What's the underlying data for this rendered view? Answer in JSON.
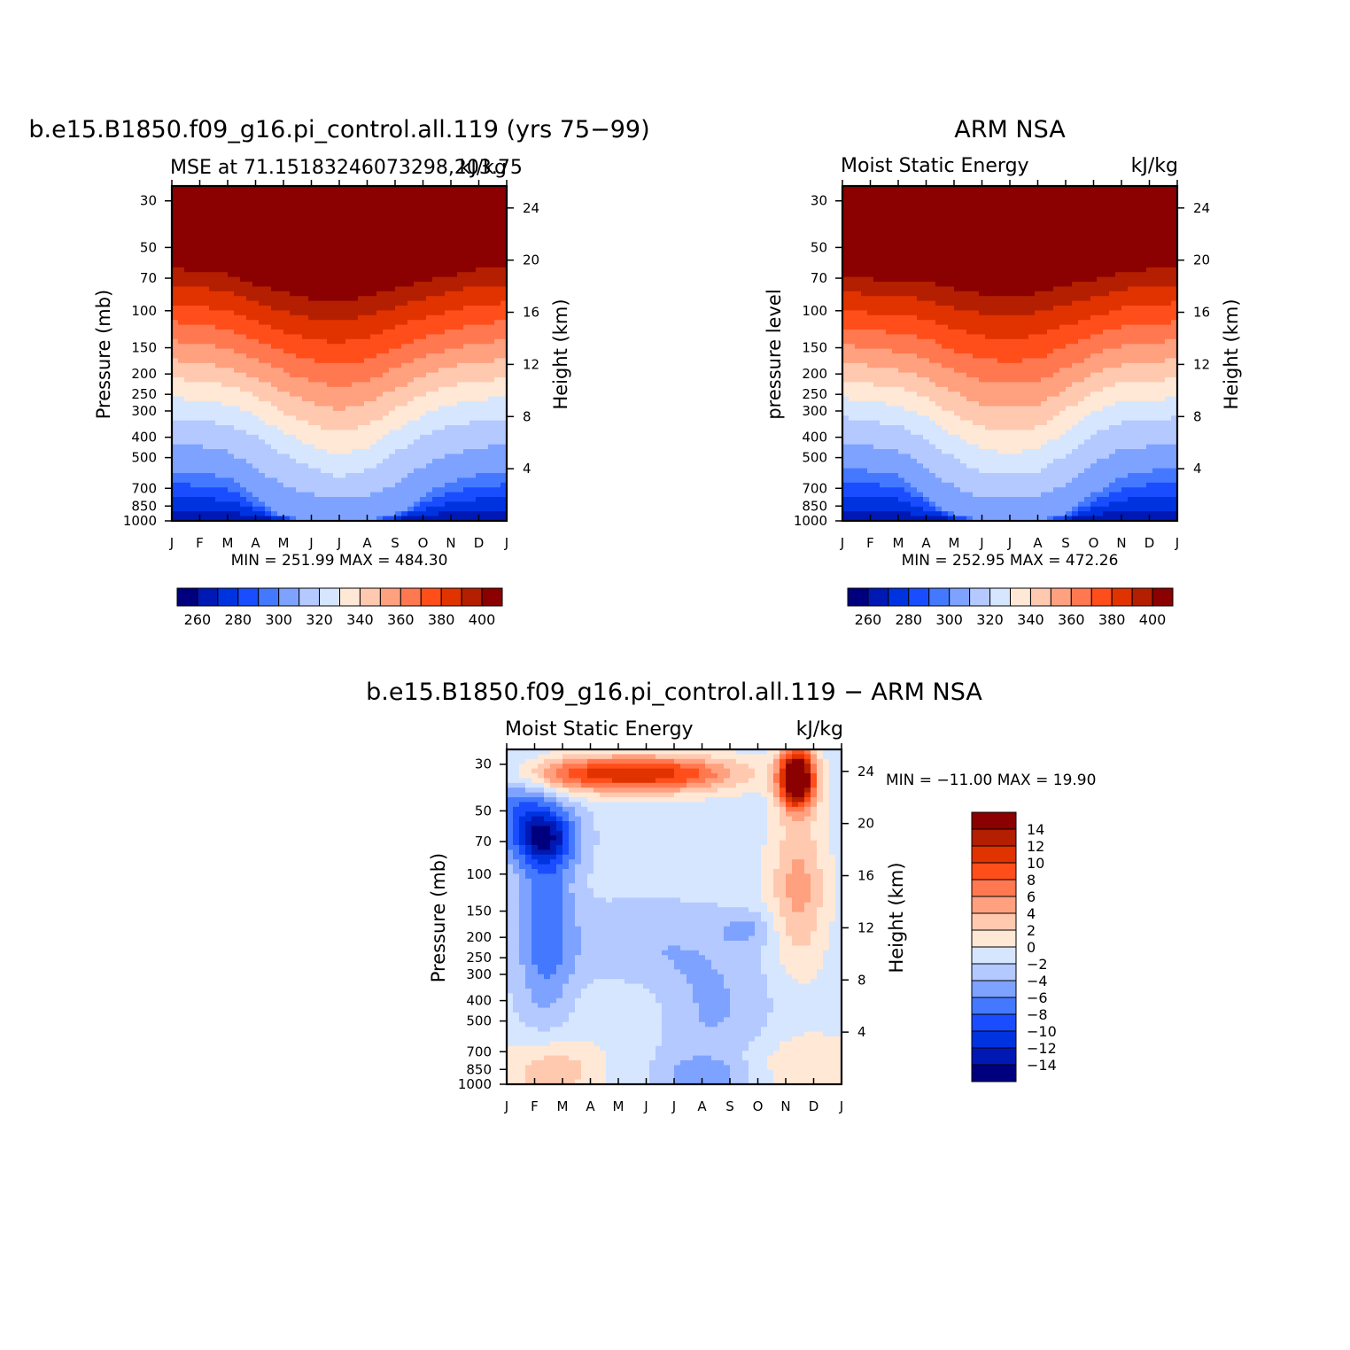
{
  "chart_data": [
    {
      "type": "heatmap",
      "panel": "model",
      "title": "b.e15.B1850.f09_g16.pi_control.all.119 (yrs 75−99)",
      "left_string": "MSE at 71.15183246073298,203.75",
      "right_string": "kJ/kg",
      "ylabel": "Pressure (mb)",
      "ylabel_right": "Height (km)",
      "x_ticks": [
        "J",
        "F",
        "M",
        "A",
        "M",
        "J",
        "J",
        "A",
        "S",
        "O",
        "N",
        "D",
        "J"
      ],
      "y_ticks": [
        30,
        50,
        70,
        100,
        150,
        200,
        250,
        300,
        400,
        500,
        700,
        850,
        1000
      ],
      "y_ticks_right": [
        24,
        20,
        16,
        12,
        8,
        4
      ],
      "ylim": [
        1000,
        25
      ],
      "stats": "MIN = 251.99 MAX = 484.30",
      "levels": [
        260,
        270,
        280,
        290,
        300,
        310,
        320,
        330,
        340,
        350,
        360,
        370,
        380,
        390,
        400
      ],
      "colorbar_labels": [
        "260",
        "280",
        "300",
        "320",
        "340",
        "360",
        "380",
        "400"
      ],
      "tropopause_mb": [
        66,
        69,
        71,
        80,
        88,
        94,
        96,
        92,
        84,
        77,
        72,
        66,
        66
      ],
      "mid_mb": [
        305,
        315,
        330,
        370,
        450,
        530,
        590,
        540,
        440,
        370,
        330,
        315,
        305
      ],
      "low_mb": [
        580,
        590,
        620,
        780,
        960,
        1000,
        1000,
        1000,
        940,
        760,
        650,
        600,
        580
      ]
    },
    {
      "type": "heatmap",
      "panel": "obs",
      "title": "ARM NSA",
      "left_string": "Moist Static Energy",
      "right_string": "kJ/kg",
      "ylabel": "pressure level",
      "ylabel_right": "Height (km)",
      "x_ticks": [
        "J",
        "F",
        "M",
        "A",
        "M",
        "J",
        "J",
        "A",
        "S",
        "O",
        "N",
        "D",
        "J"
      ],
      "y_ticks": [
        30,
        50,
        70,
        100,
        150,
        200,
        250,
        300,
        400,
        500,
        700,
        850,
        1000
      ],
      "y_ticks_right": [
        24,
        20,
        16,
        12,
        8,
        4
      ],
      "ylim": [
        1000,
        25
      ],
      "stats": "MIN = 252.95 MAX = 472.26",
      "levels": [
        260,
        270,
        280,
        290,
        300,
        310,
        320,
        330,
        340,
        350,
        360,
        370,
        380,
        390,
        400
      ],
      "colorbar_labels": [
        "260",
        "280",
        "300",
        "320",
        "340",
        "360",
        "380",
        "400"
      ],
      "tropopause_mb": [
        72,
        75,
        76,
        78,
        84,
        89,
        92,
        88,
        81,
        76,
        70,
        67,
        66
      ],
      "mid_mb": [
        305,
        315,
        335,
        380,
        470,
        560,
        580,
        560,
        450,
        360,
        320,
        315,
        305
      ],
      "low_mb": [
        560,
        580,
        600,
        760,
        940,
        1000,
        1000,
        1000,
        940,
        740,
        620,
        580,
        560
      ]
    },
    {
      "type": "heatmap",
      "panel": "difference",
      "title": "b.e15.B1850.f09_g16.pi_control.all.119 − ARM NSA",
      "left_string": "Moist Static Energy",
      "right_string": "kJ/kg",
      "ylabel": "Pressure (mb)",
      "ylabel_right": "Height (km)",
      "x_ticks": [
        "J",
        "F",
        "M",
        "A",
        "M",
        "J",
        "J",
        "A",
        "S",
        "O",
        "N",
        "D",
        "J"
      ],
      "y_ticks": [
        30,
        50,
        70,
        100,
        150,
        200,
        250,
        300,
        400,
        500,
        700,
        850,
        1000
      ],
      "y_ticks_right": [
        24,
        20,
        16,
        12,
        8,
        4
      ],
      "ylim": [
        1000,
        25
      ],
      "stats": "MIN = −11.00 MAX =   19.90",
      "levels": [
        -14,
        -12,
        -10,
        -8,
        -6,
        -4,
        -2,
        0,
        2,
        4,
        6,
        8,
        10,
        12,
        14
      ],
      "colorbar_labels": [
        "14",
        "12",
        "10",
        "8",
        "6",
        "4",
        "2",
        "0",
        "−2",
        "−4",
        "−6",
        "−8",
        "−10",
        "−12",
        "−14"
      ]
    }
  ],
  "colors": {
    "mse_fill": [
      "#00007f",
      "#0019b4",
      "#0033e0",
      "#1a4dff",
      "#4479ff",
      "#7ea2ff",
      "#b3c9ff",
      "#d6e6ff",
      "#ffe8d6",
      "#ffc9b0",
      "#ffa07f",
      "#ff7850",
      "#ff4e1a",
      "#e03300",
      "#b31f00",
      "#8b0000"
    ],
    "diff_fill": [
      "#00007f",
      "#0019b4",
      "#0033e0",
      "#1a4dff",
      "#4479ff",
      "#7ea2ff",
      "#b3c9ff",
      "#d6e6ff",
      "#ffe8d6",
      "#ffc9b0",
      "#ffa07f",
      "#ff7850",
      "#ff4e1a",
      "#e03300",
      "#b31f00",
      "#8b0000"
    ]
  }
}
